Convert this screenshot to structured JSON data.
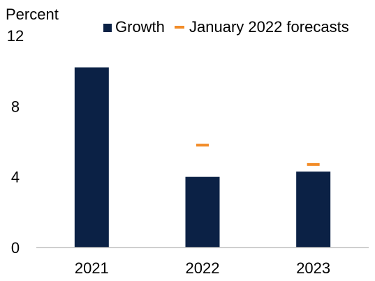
{
  "chart_data": {
    "type": "bar",
    "ylabel": "Percent",
    "categories": [
      "2021",
      "2022",
      "2023"
    ],
    "series": [
      {
        "name": "Growth",
        "kind": "bar",
        "values": [
          10.2,
          4.0,
          4.3
        ]
      },
      {
        "name": "January 2022 forecasts",
        "kind": "marker",
        "values": [
          null,
          5.8,
          4.7
        ]
      }
    ],
    "ylim": [
      0,
      12
    ],
    "yticks": [
      0,
      4,
      8,
      12
    ],
    "grid": false,
    "legend_position": "top",
    "colors": {
      "bar": "#0b2145",
      "forecast": "#f28c28",
      "axis": "#bfbfbf"
    }
  }
}
